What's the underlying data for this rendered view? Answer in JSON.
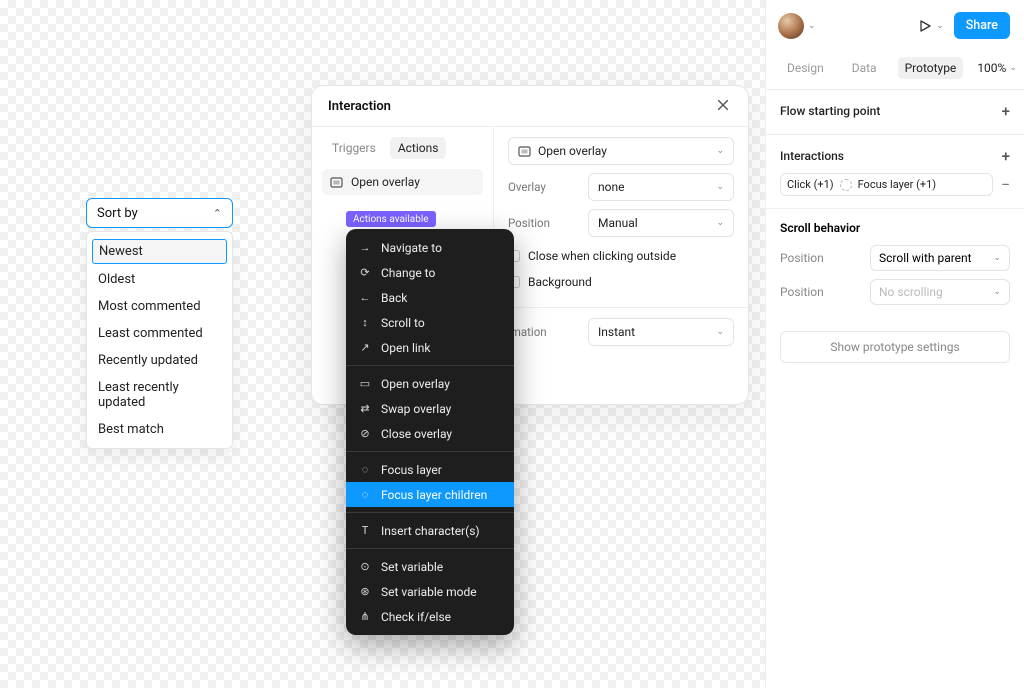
{
  "colors": {
    "accent_blue": "#0d99ff",
    "accent_purple": "#7b61ff",
    "connector": "#4f46ff",
    "menu_bg": "#1e1e1e",
    "border": "#e5e5e5",
    "text": "#111111",
    "muted": "#888888"
  },
  "sortby": {
    "label": "Sort by",
    "items": [
      "Newest",
      "Oldest",
      "Most commented",
      "Least commented",
      "Recently updated",
      "Least recently updated",
      "Best match"
    ],
    "selected_index": 0
  },
  "interaction_panel": {
    "title": "Interaction",
    "tabs": {
      "triggers": "Triggers",
      "actions": "Actions",
      "active": "actions"
    },
    "current_action": "Open overlay",
    "right": {
      "action_select": "Open overlay",
      "overlay": {
        "label": "Overlay",
        "value": "none"
      },
      "position": {
        "label": "Position",
        "value": "Manual"
      },
      "close_outside": {
        "label": "Close when clicking outside",
        "checked": false
      },
      "background": {
        "label": "Background",
        "checked": false
      },
      "animation": {
        "label": "imation",
        "value": "Instant"
      }
    }
  },
  "actions_pill": "Actions available",
  "actions_menu": {
    "groups": [
      [
        "Navigate to",
        "Change to",
        "Back",
        "Scroll to",
        "Open link"
      ],
      [
        "Open overlay",
        "Swap overlay",
        "Close overlay"
      ],
      [
        "Focus layer",
        "Focus layer children"
      ],
      [
        "Insert character(s)"
      ],
      [
        "Set variable",
        "Set variable mode",
        "Check if/else"
      ]
    ],
    "highlighted": "Focus layer children",
    "icons": {
      "Navigate to": "→",
      "Change to": "⟳",
      "Back": "←",
      "Scroll to": "↕",
      "Open link": "↗",
      "Open overlay": "▭",
      "Swap overlay": "⇄",
      "Close overlay": "⊘",
      "Focus layer": "◌",
      "Focus layer children": "◌",
      "Insert character(s)": "T",
      "Set variable": "⊙",
      "Set variable mode": "⊛",
      "Check if/else": "⋔"
    }
  },
  "sidebar": {
    "share": "Share",
    "tabs": {
      "design": "Design",
      "data": "Data",
      "prototype": "Prototype",
      "active": "prototype"
    },
    "zoom": "100%",
    "flow_section": "Flow starting point",
    "interactions": {
      "title": "Interactions",
      "chip1": "Click (+1)",
      "chip2": "Focus layer (+1)"
    },
    "scroll": {
      "title": "Scroll behavior",
      "position_label": "Position",
      "position_value": "Scroll with parent",
      "position2_label": "Position",
      "position2_value": "No scrolling"
    },
    "proto_settings": "Show prototype settings"
  }
}
